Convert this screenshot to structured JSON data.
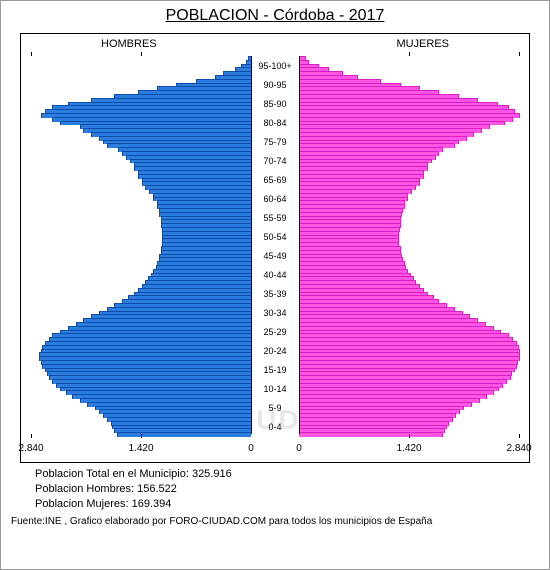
{
  "title": "POBLACION - Córdoba - 2017",
  "headers": {
    "left": "HOMBRES",
    "right": "MUJERES"
  },
  "age_labels": [
    "95-100+",
    "90-95",
    "85-90",
    "80-84",
    "75-79",
    "70-74",
    "65-69",
    "60-64",
    "55-59",
    "50-54",
    "45-49",
    "40-44",
    "35-39",
    "30-34",
    "25-29",
    "20-24",
    "15-19",
    "10-14",
    "5-9",
    "0-4"
  ],
  "max_value": 2840,
  "xticks": [
    "2.840",
    "1.420",
    "0",
    "0",
    "1.420",
    "2.840"
  ],
  "colors": {
    "male": "#2b7de0",
    "male_border": "#0b4da8",
    "female": "#ff55e5",
    "female_border": "#d81fc3",
    "border": "#000000",
    "background": "#ffffff",
    "watermark": "#e8e8e8"
  },
  "male_values": [
    30,
    50,
    120,
    200,
    350,
    450,
    700,
    950,
    1200,
    1450,
    1750,
    2050,
    2350,
    2550,
    2650,
    2700,
    2550,
    2450,
    2200,
    2150,
    2050,
    1950,
    1900,
    1850,
    1700,
    1650,
    1600,
    1550,
    1500,
    1500,
    1450,
    1450,
    1400,
    1400,
    1350,
    1300,
    1250,
    1250,
    1200,
    1200,
    1180,
    1170,
    1150,
    1150,
    1150,
    1140,
    1130,
    1130,
    1130,
    1130,
    1150,
    1150,
    1170,
    1180,
    1200,
    1220,
    1250,
    1280,
    1320,
    1350,
    1400,
    1450,
    1500,
    1580,
    1650,
    1750,
    1850,
    1950,
    2050,
    2150,
    2250,
    2350,
    2450,
    2550,
    2600,
    2650,
    2680,
    2700,
    2720,
    2720,
    2700,
    2680,
    2650,
    2620,
    2600,
    2550,
    2500,
    2450,
    2380,
    2300,
    2200,
    2100,
    2000,
    1950,
    1900,
    1850,
    1800,
    1780,
    1750,
    1720
  ],
  "female_values": [
    80,
    120,
    250,
    380,
    550,
    750,
    1050,
    1300,
    1550,
    1800,
    2050,
    2300,
    2550,
    2700,
    2780,
    2840,
    2750,
    2650,
    2450,
    2350,
    2250,
    2150,
    2050,
    2000,
    1850,
    1800,
    1750,
    1700,
    1650,
    1650,
    1600,
    1600,
    1550,
    1550,
    1500,
    1450,
    1400,
    1400,
    1350,
    1350,
    1330,
    1320,
    1300,
    1300,
    1300,
    1290,
    1280,
    1280,
    1280,
    1280,
    1300,
    1300,
    1320,
    1330,
    1350,
    1370,
    1400,
    1430,
    1470,
    1500,
    1550,
    1600,
    1650,
    1730,
    1800,
    1900,
    2000,
    2100,
    2200,
    2300,
    2400,
    2500,
    2600,
    2700,
    2750,
    2800,
    2830,
    2840,
    2840,
    2840,
    2820,
    2800,
    2770,
    2740,
    2720,
    2670,
    2620,
    2570,
    2500,
    2420,
    2320,
    2220,
    2120,
    2070,
    2020,
    1970,
    1920,
    1900,
    1870,
    1840
  ],
  "footer": {
    "total_label": "Poblacion Total en el Municipio: 325.916",
    "male_label": "Poblacion Hombres: 156.522",
    "female_label": "Poblacion Mujeres: 169.394"
  },
  "source": "Fuente:INE , Grafico elaborado por FORO-CIUDAD.COM para todos los municipios de España",
  "watermark": "FORO-CIUDAD.COM"
}
